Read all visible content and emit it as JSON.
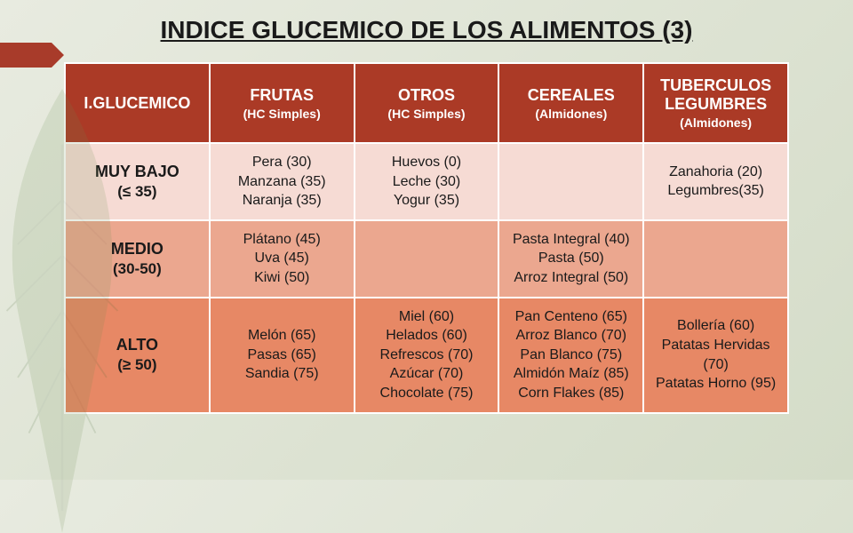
{
  "title": "INDICE GLUCEMICO DE LOS ALIMENTOS (3)",
  "columns": [
    {
      "label": "I.GLUCEMICO",
      "sub": ""
    },
    {
      "label": "FRUTAS",
      "sub": "(HC Simples)"
    },
    {
      "label": "OTROS",
      "sub": "(HC Simples)"
    },
    {
      "label": "CEREALES",
      "sub": "(Almidones)"
    },
    {
      "label": "TUBERCULOS LEGUMBRES",
      "sub": "(Almidones)"
    }
  ],
  "rows": [
    {
      "class": "row-muybajo",
      "bg": "#f6dbd4",
      "head": "MUY BAJO",
      "range": "(≤ 35)",
      "cells": [
        "Pera (30)\nManzana (35)\nNaranja (35)",
        "Huevos (0)\nLeche (30)\nYogur  (35)",
        "",
        "Zanahoria (20)\nLegumbres(35)"
      ]
    },
    {
      "class": "row-medio",
      "bg": "#eba78f",
      "head": "MEDIO",
      "range": "(30-50)",
      "cells": [
        "Plátano (45)\nUva (45)\nKiwi (50)",
        "",
        "Pasta Integral (40)\nPasta  (50)\nArroz Integral (50)",
        ""
      ]
    },
    {
      "class": "row-alto",
      "bg": "#e78865",
      "head": "ALTO",
      "range": "(≥ 50)",
      "cells": [
        "Melón (65)\nPasas (65)\nSandia (75)",
        "Miel (60)\nHelados (60)\nRefrescos (70)\nAzúcar (70)\nChocolate (75)",
        "Pan Centeno (65)\nArroz Blanco (70)\nPan Blanco (75)\nAlmidón Maíz (85)\nCorn Flakes (85)",
        "Bollería (60)\nPatatas Hervidas (70)\nPatatas Horno (95)"
      ]
    }
  ],
  "colors": {
    "header_bg": "#ab3a26",
    "header_fg": "#ffffff",
    "title_color": "#1a1a1a",
    "arrow_color": "#a83b2a"
  },
  "typography": {
    "title_fontsize": 28,
    "header_fontsize": 18,
    "cell_fontsize": 16
  }
}
